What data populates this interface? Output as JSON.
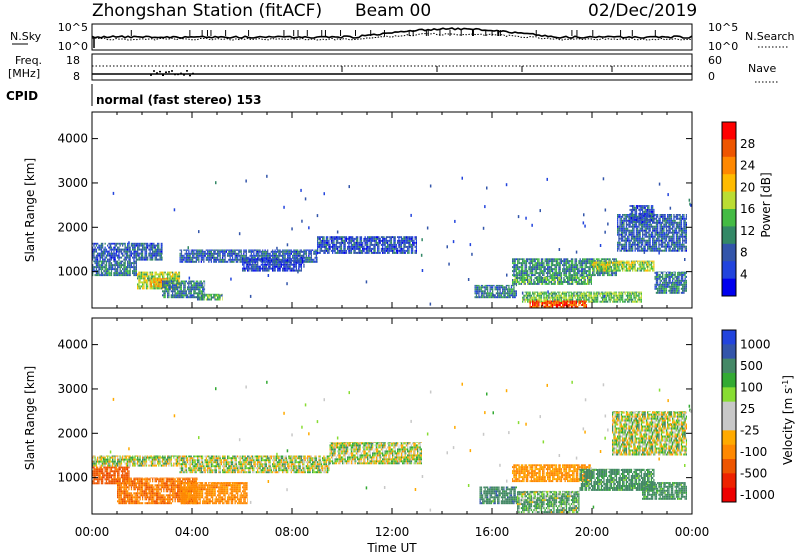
{
  "header": {
    "station": "Zhongshan Station (fitACF)",
    "beam": "Beam 00",
    "date": "02/Dec/2019"
  },
  "status_panel": {
    "nsky_label": "N.Sky",
    "nsky_ticks": [
      "10^5",
      "10^0"
    ],
    "nsearch_label": "N.Search",
    "nsearch_ticks": [
      "10^5",
      "10^0"
    ],
    "freq_label": "Freq.",
    "freq_unit": "[MHz]",
    "freq_ticks": [
      "18",
      "8"
    ],
    "nave_label": "Nave",
    "nave_ticks": [
      "60",
      "0"
    ],
    "cpid_label": "CPID",
    "cpid_text": "normal (fast stereo) 153"
  },
  "axes": {
    "ylabel": "Slant Range [km]",
    "yticks": [
      "4000",
      "3000",
      "2000",
      "1000"
    ],
    "xlabel": "Time UT",
    "xticks": [
      "00:00",
      "04:00",
      "08:00",
      "12:00",
      "16:00",
      "20:00",
      "00:00"
    ]
  },
  "power_scale": {
    "label": "Power [dB]",
    "ticks": [
      "28",
      "24",
      "20",
      "16",
      "12",
      "8",
      "4"
    ],
    "colors": [
      "#ff0000",
      "#ee5500",
      "#ff8800",
      "#ffbb00",
      "#bbdd33",
      "#44bb44",
      "#338866",
      "#3355aa",
      "#2244dd",
      "#0000ee"
    ]
  },
  "velocity_scale": {
    "label": "Velocity [m s",
    "label_sup": "-1",
    "label_end": "]",
    "ticks": [
      "1000",
      "500",
      "100",
      "25",
      "-25",
      "-100",
      "-500",
      "-1000"
    ],
    "colors": [
      "#2244dd",
      "#3355aa",
      "#448866",
      "#33aa33",
      "#88dd33",
      "#c8c8c8",
      "#c8c8c8",
      "#ffaa00",
      "#ff8800",
      "#ee5500",
      "#ee2200",
      "#ee0000"
    ]
  },
  "chart_data": [
    {
      "type": "heatmap",
      "title": "Power",
      "xlabel": "Time UT",
      "ylabel": "Slant Range [km]",
      "xlim": [
        0,
        24
      ],
      "ylim": [
        180,
        4600
      ],
      "units": "dB",
      "clim": [
        0,
        32
      ],
      "blobs": [
        {
          "t0": 0.0,
          "t1": 2.8,
          "r0": 1250,
          "r1": 1650,
          "v": 7
        },
        {
          "t0": 0.0,
          "t1": 1.8,
          "r0": 900,
          "r1": 1250,
          "v": 9
        },
        {
          "t0": 1.8,
          "t1": 3.5,
          "r0": 600,
          "r1": 1000,
          "v": 16
        },
        {
          "t0": 2.3,
          "t1": 3.0,
          "r0": 650,
          "r1": 850,
          "v": 22
        },
        {
          "t0": 2.8,
          "t1": 4.5,
          "r0": 400,
          "r1": 800,
          "v": 9
        },
        {
          "t0": 4.2,
          "t1": 5.2,
          "r0": 350,
          "r1": 500,
          "v": 12
        },
        {
          "t0": 3.5,
          "t1": 9.0,
          "r0": 1200,
          "r1": 1500,
          "v": 7
        },
        {
          "t0": 9.0,
          "t1": 13.0,
          "r0": 1400,
          "r1": 1800,
          "v": 6
        },
        {
          "t0": 6.0,
          "t1": 8.5,
          "r0": 1000,
          "r1": 1300,
          "v": 5
        },
        {
          "t0": 15.3,
          "t1": 17.0,
          "r0": 400,
          "r1": 700,
          "v": 9
        },
        {
          "t0": 16.8,
          "t1": 21.0,
          "r0": 900,
          "r1": 1300,
          "v": 10
        },
        {
          "t0": 16.8,
          "t1": 20.0,
          "r0": 700,
          "r1": 900,
          "v": 12
        },
        {
          "t0": 17.2,
          "t1": 22.0,
          "r0": 300,
          "r1": 550,
          "v": 14
        },
        {
          "t0": 17.5,
          "t1": 19.8,
          "r0": 180,
          "r1": 350,
          "v": 27
        },
        {
          "t0": 20.0,
          "t1": 22.5,
          "r0": 1000,
          "r1": 1250,
          "v": 16
        },
        {
          "t0": 21.0,
          "t1": 23.8,
          "r0": 1450,
          "r1": 2300,
          "v": 7
        },
        {
          "t0": 21.5,
          "t1": 22.5,
          "r0": 2100,
          "r1": 2500,
          "v": 6
        },
        {
          "t0": 22.5,
          "t1": 23.8,
          "r0": 500,
          "r1": 1000,
          "v": 9
        }
      ]
    },
    {
      "type": "heatmap",
      "title": "Velocity",
      "xlabel": "Time UT",
      "ylabel": "Slant Range [km]",
      "xlim": [
        0,
        24
      ],
      "ylim": [
        180,
        4600
      ],
      "units": "m s-1",
      "clim": [
        -1000,
        1000
      ],
      "blobs": [
        {
          "t0": 0.0,
          "t1": 3.5,
          "r0": 1250,
          "r1": 1500,
          "v": 0
        },
        {
          "t0": 0.0,
          "t1": 1.5,
          "r0": 850,
          "r1": 1250,
          "v": -400
        },
        {
          "t0": 1.0,
          "t1": 4.2,
          "r0": 400,
          "r1": 1000,
          "v": -300
        },
        {
          "t0": 3.5,
          "t1": 6.2,
          "r0": 400,
          "r1": 900,
          "v": -200
        },
        {
          "t0": 3.5,
          "t1": 9.5,
          "r0": 1100,
          "r1": 1500,
          "v": 0
        },
        {
          "t0": 9.5,
          "t1": 13.2,
          "r0": 1300,
          "r1": 1800,
          "v": 0
        },
        {
          "t0": 15.5,
          "t1": 17.0,
          "r0": 400,
          "r1": 800,
          "v": 200
        },
        {
          "t0": 16.8,
          "t1": 20.0,
          "r0": 900,
          "r1": 1300,
          "v": -150
        },
        {
          "t0": 17.0,
          "t1": 19.5,
          "r0": 200,
          "r1": 700,
          "v": 70
        },
        {
          "t0": 19.5,
          "t1": 22.5,
          "r0": 700,
          "r1": 1200,
          "v": 150
        },
        {
          "t0": 20.8,
          "t1": 23.8,
          "r0": 1500,
          "r1": 2500,
          "v": 0
        },
        {
          "t0": 22.0,
          "t1": 23.8,
          "r0": 500,
          "r1": 900,
          "v": 150
        }
      ]
    }
  ]
}
